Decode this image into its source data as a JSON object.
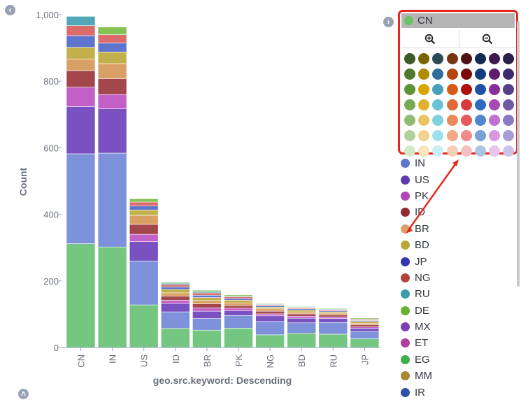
{
  "chart_data": {
    "type": "bar",
    "stacked": true,
    "xlabel": "geo.src.keyword: Descending",
    "ylabel": "Count",
    "ylim": [
      0,
      1000
    ],
    "yticks": [
      "0",
      "200",
      "400",
      "600",
      "800",
      "1,000"
    ],
    "categories": [
      "CN",
      "IN",
      "US",
      "ID",
      "BR",
      "PK",
      "NG",
      "BD",
      "RU",
      "JP"
    ],
    "series": [
      {
        "color": "#74c680",
        "values": [
          312,
          302,
          128,
          57,
          52,
          58,
          38,
          42,
          40,
          26
        ]
      },
      {
        "color": "#7e92dc",
        "values": [
          270,
          282,
          132,
          50,
          35,
          38,
          40,
          32,
          35,
          22
        ]
      },
      {
        "color": "#7a51c0",
        "values": [
          142,
          133,
          58,
          25,
          22,
          14,
          17,
          14,
          12,
          10
        ]
      },
      {
        "color": "#c260c8",
        "values": [
          58,
          43,
          22,
          10,
          10,
          8,
          6,
          6,
          5,
          4
        ]
      },
      {
        "color": "#a3474d",
        "values": [
          50,
          48,
          30,
          12,
          12,
          8,
          8,
          7,
          6,
          6
        ]
      },
      {
        "color": "#d9a065",
        "values": [
          35,
          45,
          27,
          10,
          10,
          8,
          7,
          6,
          5,
          5
        ]
      },
      {
        "color": "#c2b14a",
        "values": [
          35,
          35,
          16,
          10,
          9,
          8,
          5,
          5,
          4,
          5
        ]
      },
      {
        "color": "#5f74cc",
        "values": [
          35,
          27,
          12,
          8,
          7,
          5,
          4,
          4,
          3,
          3
        ]
      },
      {
        "color": "#dc6b6b",
        "values": [
          30,
          25,
          12,
          7,
          7,
          5,
          3,
          3,
          3,
          3
        ]
      },
      {
        "color": "#50a7b6",
        "values": [
          28,
          0,
          0,
          4,
          4,
          2,
          2,
          2,
          2,
          2
        ]
      },
      {
        "color": "#85c254",
        "values": [
          0,
          23,
          10,
          3,
          4,
          4,
          2,
          2,
          2,
          3
        ]
      }
    ]
  },
  "nav": {
    "left_arrow": "‹",
    "right_arrow": "›",
    "bottom_arrow": "˄"
  },
  "color_popup": {
    "selected_label": "CN",
    "selected_color": "#6ac264",
    "zoom_in_icon": "zoom-in",
    "zoom_out_icon": "zoom-out",
    "swatch_rows": [
      [
        "#3d5a26",
        "#7a6400",
        "#2c4a55",
        "#7a3510",
        "#4d1212",
        "#0f2a55",
        "#3d1a50",
        "#2b2048"
      ],
      [
        "#4e7a2c",
        "#b08a00",
        "#2e6e9a",
        "#b24510",
        "#7a0a0a",
        "#133b82",
        "#5d1d6e",
        "#3b2b6e"
      ],
      [
        "#5e9438",
        "#d9a300",
        "#4aa0b8",
        "#d75a18",
        "#b00f0f",
        "#1d4fa6",
        "#8a2d9c",
        "#52418a"
      ],
      [
        "#77aa55",
        "#e0b030",
        "#6ac4d6",
        "#e06a3a",
        "#d63a3a",
        "#3069c2",
        "#a84bb6",
        "#6e5aa6"
      ],
      [
        "#90bb72",
        "#e9c460",
        "#7fd0de",
        "#ec8a5a",
        "#e55a5a",
        "#4f86cf",
        "#c070ce",
        "#8a7bc0"
      ],
      [
        "#b0d29a",
        "#f2d28e",
        "#9ee0ea",
        "#f2a886",
        "#ee8a8a",
        "#77a1d8",
        "#d59ae0",
        "#a99cd5"
      ],
      [
        "#d3e9c8",
        "#f8e4bd",
        "#c8eff3",
        "#f8cdb8",
        "#f5c0c0",
        "#a8c5e8",
        "#e8c4ef",
        "#cbc2ea"
      ]
    ]
  },
  "legend": {
    "items": [
      {
        "label": "IN",
        "color": "#5f74cc"
      },
      {
        "label": "US",
        "color": "#5e3aad"
      },
      {
        "label": "PK",
        "color": "#b046b8"
      },
      {
        "label": "ID",
        "color": "#8e2c31"
      },
      {
        "label": "BR",
        "color": "#d9a065"
      },
      {
        "label": "BD",
        "color": "#b9a735"
      },
      {
        "label": "JP",
        "color": "#3236b0"
      },
      {
        "label": "NG",
        "color": "#b4413c"
      },
      {
        "label": "RU",
        "color": "#3f9aa9"
      },
      {
        "label": "DE",
        "color": "#67b02e"
      },
      {
        "label": "MX",
        "color": "#7a41b4"
      },
      {
        "label": "ET",
        "color": "#b13d9c"
      },
      {
        "label": "EG",
        "color": "#41ae4e"
      },
      {
        "label": "MM",
        "color": "#a98530"
      },
      {
        "label": "IR",
        "color": "#3150a8"
      }
    ]
  }
}
